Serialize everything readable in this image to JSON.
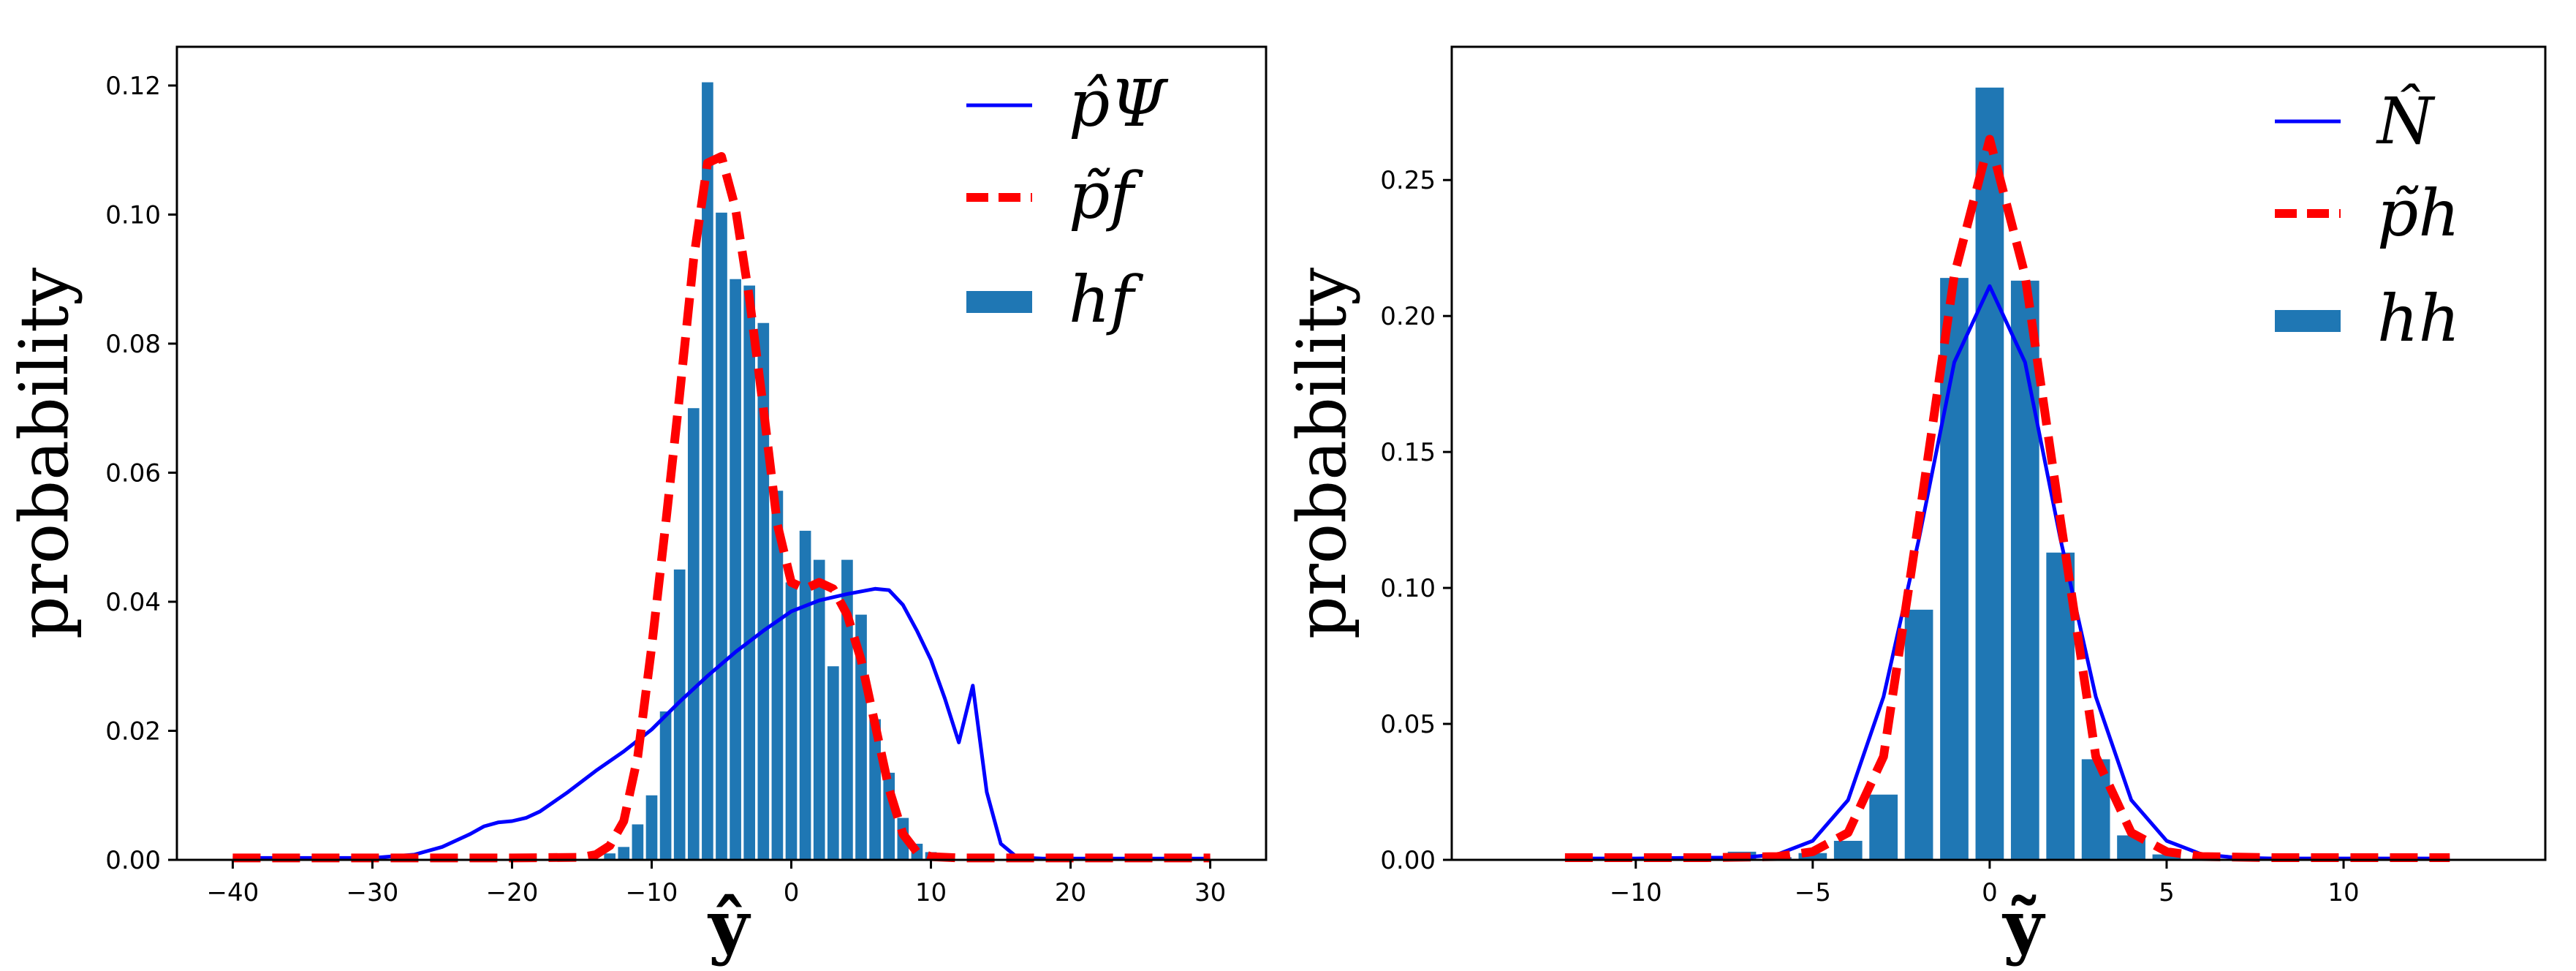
{
  "chart_data": [
    {
      "type": "bar",
      "xlabel": "ŷ",
      "ylabel": "probability",
      "xlim": [
        -44,
        34
      ],
      "ylim": [
        0,
        0.126
      ],
      "xticks": [
        -40,
        -30,
        -20,
        -10,
        0,
        10,
        20,
        30
      ],
      "xtick_labels": [
        "−40",
        "−30",
        "−20",
        "−10",
        "0",
        "10",
        "20",
        "30"
      ],
      "yticks": [
        0,
        0.02,
        0.04,
        0.06,
        0.08,
        0.1,
        0.12
      ],
      "ytick_labels": [
        "0.00",
        "0.02",
        "0.04",
        "0.06",
        "0.08",
        "0.10",
        "0.12"
      ],
      "bar_width": 0.82,
      "legend_position": "top-right",
      "legend": [
        "p̂Ψ",
        "p̃f",
        "hf"
      ],
      "series": [
        {
          "name": "p̂Ψ",
          "kind": "line",
          "color": "#0000ff",
          "style": "solid",
          "x": [
            -40,
            -30,
            -27,
            -25,
            -23,
            -22,
            -21,
            -20,
            -19,
            -18,
            -16,
            -14,
            -12,
            -10,
            -8,
            -6,
            -4,
            -2,
            0,
            2,
            4,
            6,
            7,
            8,
            9,
            10,
            11,
            12,
            13,
            14,
            15,
            16,
            17,
            18,
            20,
            25,
            30
          ],
          "y": [
            0.0003,
            0.0003,
            0.0008,
            0.002,
            0.004,
            0.0052,
            0.0058,
            0.006,
            0.0065,
            0.0075,
            0.0105,
            0.0138,
            0.0168,
            0.0202,
            0.0245,
            0.0285,
            0.0322,
            0.0355,
            0.0385,
            0.0402,
            0.0412,
            0.042,
            0.0418,
            0.0395,
            0.0355,
            0.031,
            0.025,
            0.0182,
            0.027,
            0.0105,
            0.0025,
            0.0007,
            0.0003,
            0.0002,
            0.0002,
            0.0002,
            0.0002
          ]
        },
        {
          "name": "p̃f",
          "kind": "line",
          "color": "#ff0000",
          "style": "dashed",
          "x": [
            -40,
            -20,
            -15,
            -14,
            -13,
            -12,
            -11,
            -10,
            -9,
            -8,
            -7,
            -6,
            -5,
            -4,
            -3,
            -2,
            -1,
            0,
            1,
            2,
            3,
            4,
            5,
            6,
            7,
            8,
            9,
            10,
            12,
            15,
            20,
            30
          ],
          "y": [
            0.0003,
            0.0003,
            0.0004,
            0.0008,
            0.0022,
            0.006,
            0.016,
            0.033,
            0.052,
            0.072,
            0.093,
            0.108,
            0.109,
            0.101,
            0.087,
            0.07,
            0.052,
            0.043,
            0.042,
            0.043,
            0.042,
            0.038,
            0.031,
            0.021,
            0.011,
            0.004,
            0.0012,
            0.0005,
            0.0003,
            0.0003,
            0.0003,
            0.0003
          ]
        },
        {
          "name": "hf",
          "kind": "bar",
          "color": "#1f77b4",
          "x": [
            -13,
            -12,
            -11,
            -10,
            -9,
            -8,
            -7,
            -6,
            -5,
            -4,
            -3,
            -2,
            -1,
            0,
            1,
            2,
            3,
            4,
            5,
            6,
            7,
            8,
            9,
            10,
            11
          ],
          "y": [
            0.001,
            0.002,
            0.0055,
            0.01,
            0.023,
            0.045,
            0.07,
            0.1205,
            0.1003,
            0.09,
            0.089,
            0.0832,
            0.0572,
            0.043,
            0.051,
            0.0465,
            0.03,
            0.0465,
            0.038,
            0.0218,
            0.0135,
            0.0065,
            0.0025,
            0.0012,
            0.0005
          ]
        }
      ]
    },
    {
      "type": "bar",
      "xlabel": "ỹ",
      "ylabel": "probability",
      "xlim": [
        -15.2,
        15.7
      ],
      "ylim": [
        0,
        0.299
      ],
      "xticks": [
        -10,
        -5,
        0,
        5,
        10
      ],
      "xtick_labels": [
        "−10",
        "−5",
        "0",
        "5",
        "10"
      ],
      "yticks": [
        0,
        0.05,
        0.1,
        0.15,
        0.2,
        0.25
      ],
      "ytick_labels": [
        "0.00",
        "0.05",
        "0.10",
        "0.15",
        "0.20",
        "0.25"
      ],
      "bar_width": 0.8,
      "legend_position": "top-right",
      "legend": [
        "N̂",
        "p̃h",
        "hh"
      ],
      "series": [
        {
          "name": "N̂",
          "kind": "line",
          "color": "#0000ff",
          "style": "solid",
          "x": [
            -12,
            -10,
            -8,
            -7,
            -6,
            -5,
            -4,
            -3,
            -2,
            -1,
            0,
            1,
            2,
            3,
            4,
            5,
            6,
            7,
            8,
            10,
            13
          ],
          "y": [
            0.0005,
            0.0005,
            0.0008,
            0.0008,
            0.002,
            0.007,
            0.022,
            0.06,
            0.118,
            0.183,
            0.211,
            0.183,
            0.118,
            0.06,
            0.022,
            0.007,
            0.002,
            0.0008,
            0.0005,
            0.0005,
            0.0005
          ]
        },
        {
          "name": "p̃h",
          "kind": "line",
          "color": "#ff0000",
          "style": "dashed",
          "x": [
            -12,
            -8,
            -6,
            -5,
            -4,
            -3,
            -2,
            -1,
            0,
            1,
            2,
            3,
            4,
            5,
            6,
            8,
            13
          ],
          "y": [
            0.0008,
            0.0008,
            0.0012,
            0.003,
            0.01,
            0.038,
            0.125,
            0.215,
            0.265,
            0.215,
            0.125,
            0.038,
            0.01,
            0.003,
            0.0012,
            0.0008,
            0.0008
          ]
        },
        {
          "name": "hh",
          "kind": "bar",
          "color": "#1f77b4",
          "x": [
            -7,
            -6,
            -5,
            -4,
            -3,
            -2,
            -1,
            0,
            1,
            2,
            3,
            4,
            5
          ],
          "y": [
            0.003,
            0.001,
            0.0025,
            0.007,
            0.024,
            0.092,
            0.214,
            0.284,
            0.213,
            0.113,
            0.037,
            0.009,
            0.002
          ]
        }
      ]
    }
  ]
}
